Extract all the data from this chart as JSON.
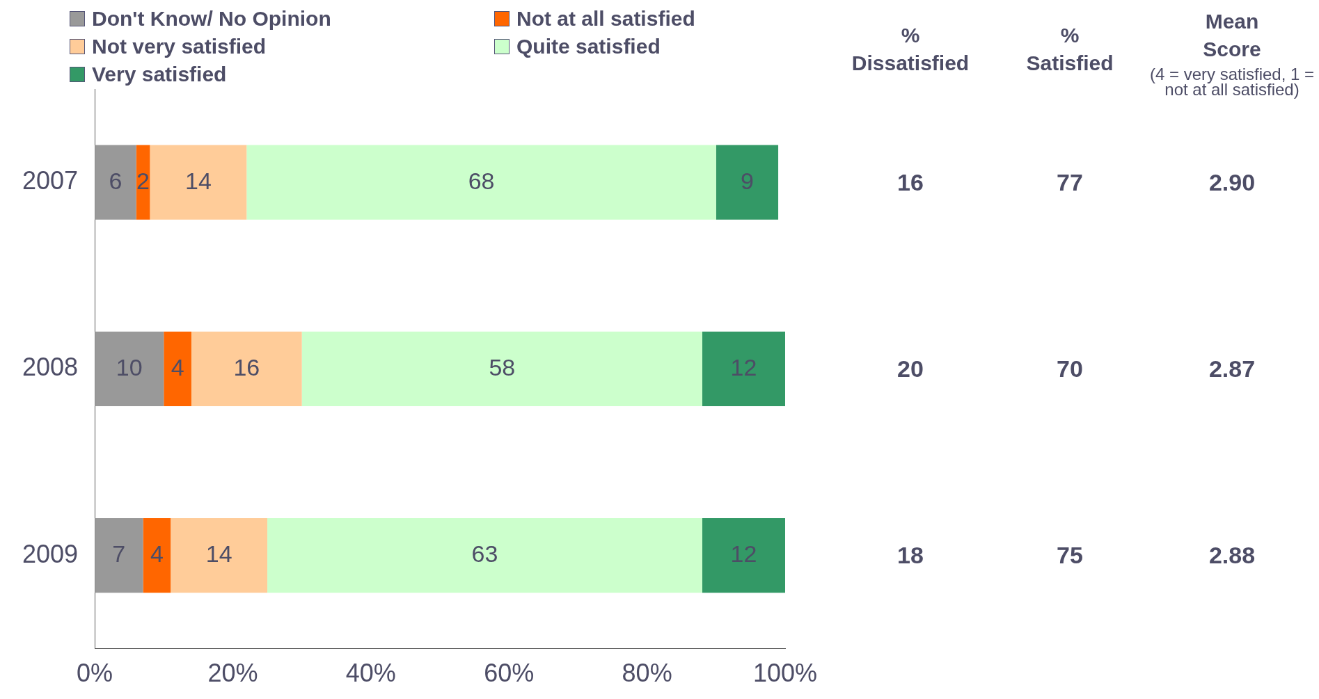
{
  "chart_data": {
    "type": "bar",
    "orientation": "horizontal",
    "stacked": true,
    "categories": [
      "2007",
      "2008",
      "2009"
    ],
    "series": [
      {
        "name": "Don't Know/ No Opinion",
        "color": "#999999",
        "values": [
          6,
          10,
          7
        ]
      },
      {
        "name": "Not at all satisfied",
        "color": "#ff6600",
        "values": [
          2,
          4,
          4
        ]
      },
      {
        "name": "Not very satisfied",
        "color": "#ffcc99",
        "values": [
          14,
          16,
          14
        ]
      },
      {
        "name": "Quite satisfied",
        "color": "#ccffcc",
        "values": [
          68,
          58,
          63
        ]
      },
      {
        "name": "Very satisfied",
        "color": "#339966",
        "values": [
          9,
          12,
          12
        ]
      }
    ],
    "xlim": [
      0,
      100
    ],
    "xticks": [
      {
        "value": 0,
        "label": "0%"
      },
      {
        "value": 20,
        "label": "20%"
      },
      {
        "value": 40,
        "label": "40%"
      },
      {
        "value": 60,
        "label": "60%"
      },
      {
        "value": 80,
        "label": "80%"
      },
      {
        "value": 100,
        "label": "100%"
      }
    ],
    "data_labels": true,
    "grid": false,
    "legend": "top left",
    "annotations": [
      "% Dissatisfied",
      "% Satisfied",
      "Mean Score",
      "(4 = very satisfied, 1 = not at all satisfied)",
      "16",
      "77",
      "2.90",
      "20",
      "70",
      "2.87",
      "18",
      "75",
      "2.88"
    ]
  }
}
